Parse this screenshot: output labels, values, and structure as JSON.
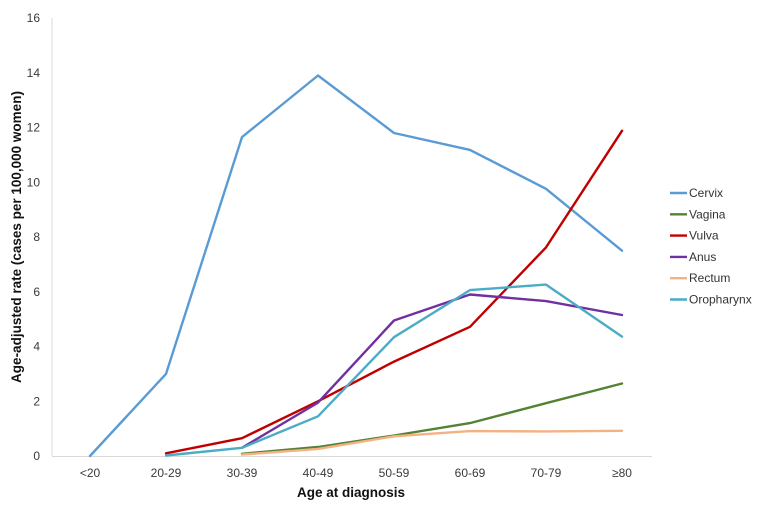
{
  "chart_data": {
    "type": "line",
    "title": "",
    "xlabel": "Age at diagnosis",
    "ylabel": "Age-adjusted rate (cases per 100,000 women)",
    "categories": [
      "<20",
      "20-29",
      "30-39",
      "40-49",
      "50-59",
      "60-69",
      "70-79",
      "≥80"
    ],
    "ylim": [
      0,
      16
    ],
    "yticks": [
      0,
      2,
      4,
      6,
      8,
      10,
      12,
      14,
      16
    ],
    "grid": false,
    "legend_position": "right",
    "series": [
      {
        "name": "Cervix",
        "color": "#5B9BD5",
        "values": [
          0,
          3.0,
          11.65,
          13.9,
          11.8,
          11.18,
          9.76,
          7.5
        ]
      },
      {
        "name": "Vagina",
        "color": "#548235",
        "values": [
          null,
          null,
          0.08,
          0.33,
          0.75,
          1.2,
          1.93,
          2.65
        ]
      },
      {
        "name": "Vulva",
        "color": "#C00000",
        "values": [
          null,
          0.1,
          0.65,
          2.0,
          3.45,
          4.72,
          7.62,
          11.88
        ]
      },
      {
        "name": "Anus",
        "color": "#7030A0",
        "values": [
          null,
          null,
          0.3,
          1.95,
          4.95,
          5.9,
          5.66,
          5.15
        ]
      },
      {
        "name": "Rectum",
        "color": "#F4B183",
        "values": [
          null,
          null,
          0.05,
          0.26,
          0.72,
          0.91,
          0.9,
          0.92
        ]
      },
      {
        "name": "Oropharynx",
        "color": "#4BACC6",
        "values": [
          null,
          0.02,
          0.3,
          1.45,
          4.34,
          6.06,
          6.26,
          4.36
        ]
      }
    ]
  },
  "axes": {
    "x_title": "Age at diagnosis",
    "y_title": "Age-adjusted rate (cases per 100,000 women)"
  },
  "legend": {
    "items": [
      {
        "label": "Cervix",
        "color": "#5B9BD5"
      },
      {
        "label": "Vagina",
        "color": "#548235"
      },
      {
        "label": "Vulva",
        "color": "#C00000"
      },
      {
        "label": "Anus",
        "color": "#7030A0"
      },
      {
        "label": "Rectum",
        "color": "#F4B183"
      },
      {
        "label": "Oropharynx",
        "color": "#4BACC6"
      }
    ]
  }
}
